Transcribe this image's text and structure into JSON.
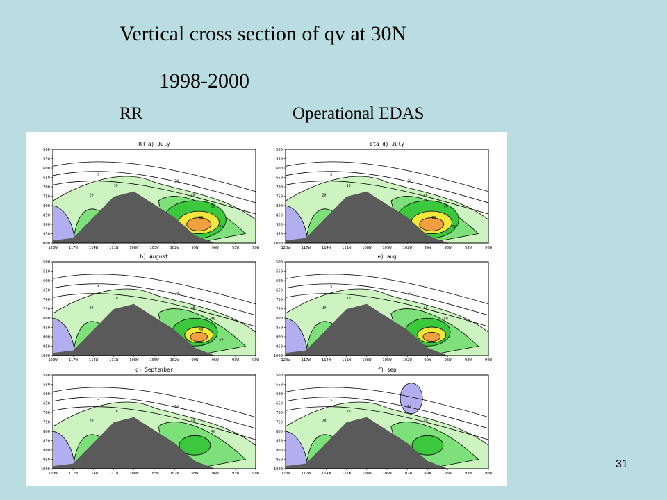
{
  "slide": {
    "title": "Vertical cross section of qv at 30N",
    "years": "1998-2000",
    "left_label": "RR",
    "right_label": "Operational EDAS",
    "page_number": "31"
  },
  "chart_data": {
    "type": "contour",
    "grid": "3x2 panels",
    "x_ticks": [
      "120W",
      "117W",
      "114W",
      "111W",
      "108W",
      "105W",
      "102W",
      "99W",
      "96W",
      "93W",
      "90W"
    ],
    "y_ticks": [
      "500",
      "550",
      "600",
      "650",
      "700",
      "750",
      "800",
      "850",
      "900",
      "950",
      "1000"
    ],
    "ylim": [
      1000,
      500
    ],
    "panels": [
      {
        "title": "RR a) July",
        "col": 0,
        "row": 0,
        "contour_labels": [
          "5",
          "10",
          "20",
          "30",
          "40",
          "50",
          "60",
          "70"
        ],
        "terrain": [
          0.95,
          0.9,
          0.5,
          0.1,
          0.0,
          0.25,
          0.5,
          0.85,
          1,
          1,
          1
        ]
      },
      {
        "title": "eta d) July",
        "col": 1,
        "row": 0,
        "contour_labels": [
          "5",
          "10",
          "20",
          "30",
          "40",
          "50",
          "60",
          "70"
        ],
        "terrain": [
          0.95,
          0.9,
          0.5,
          0.1,
          0.0,
          0.25,
          0.5,
          0.85,
          1,
          1,
          1
        ]
      },
      {
        "title": "b) August",
        "col": 0,
        "row": 1,
        "contour_labels": [
          "5",
          "10",
          "20",
          "30",
          "38",
          "40",
          "50",
          "60"
        ],
        "terrain": [
          0.95,
          0.9,
          0.5,
          0.1,
          0.0,
          0.25,
          0.5,
          0.85,
          1,
          1,
          1
        ]
      },
      {
        "title": "e) aug",
        "col": 1,
        "row": 1,
        "contour_labels": [
          "5",
          "10",
          "20",
          "30",
          "40",
          "50"
        ],
        "terrain": [
          0.95,
          0.9,
          0.5,
          0.1,
          0.0,
          0.25,
          0.5,
          0.85,
          1,
          1,
          1
        ]
      },
      {
        "title": "c) September",
        "col": 0,
        "row": 2,
        "contour_labels": [
          "5",
          "10",
          "20",
          "30",
          "40",
          "50"
        ],
        "terrain": [
          0.95,
          0.9,
          0.5,
          0.1,
          0.0,
          0.25,
          0.5,
          0.85,
          1,
          1,
          1
        ]
      },
      {
        "title": "f) sep",
        "col": 1,
        "row": 2,
        "contour_labels": [
          "5",
          "10",
          "20",
          "30",
          "40"
        ],
        "terrain": [
          0.95,
          0.9,
          0.5,
          0.1,
          0.0,
          0.25,
          0.5,
          0.85,
          1,
          1,
          1
        ]
      }
    ],
    "colors": {
      "terrain": "#5a5a5a",
      "low_shade": "#b3aef0",
      "light_green": "#cdf4c0",
      "green": "#7de07a",
      "bright_green": "#3cc83c",
      "yellow": "#f2e83c",
      "orange": "#f0a040",
      "red": "#e05a3a"
    }
  }
}
